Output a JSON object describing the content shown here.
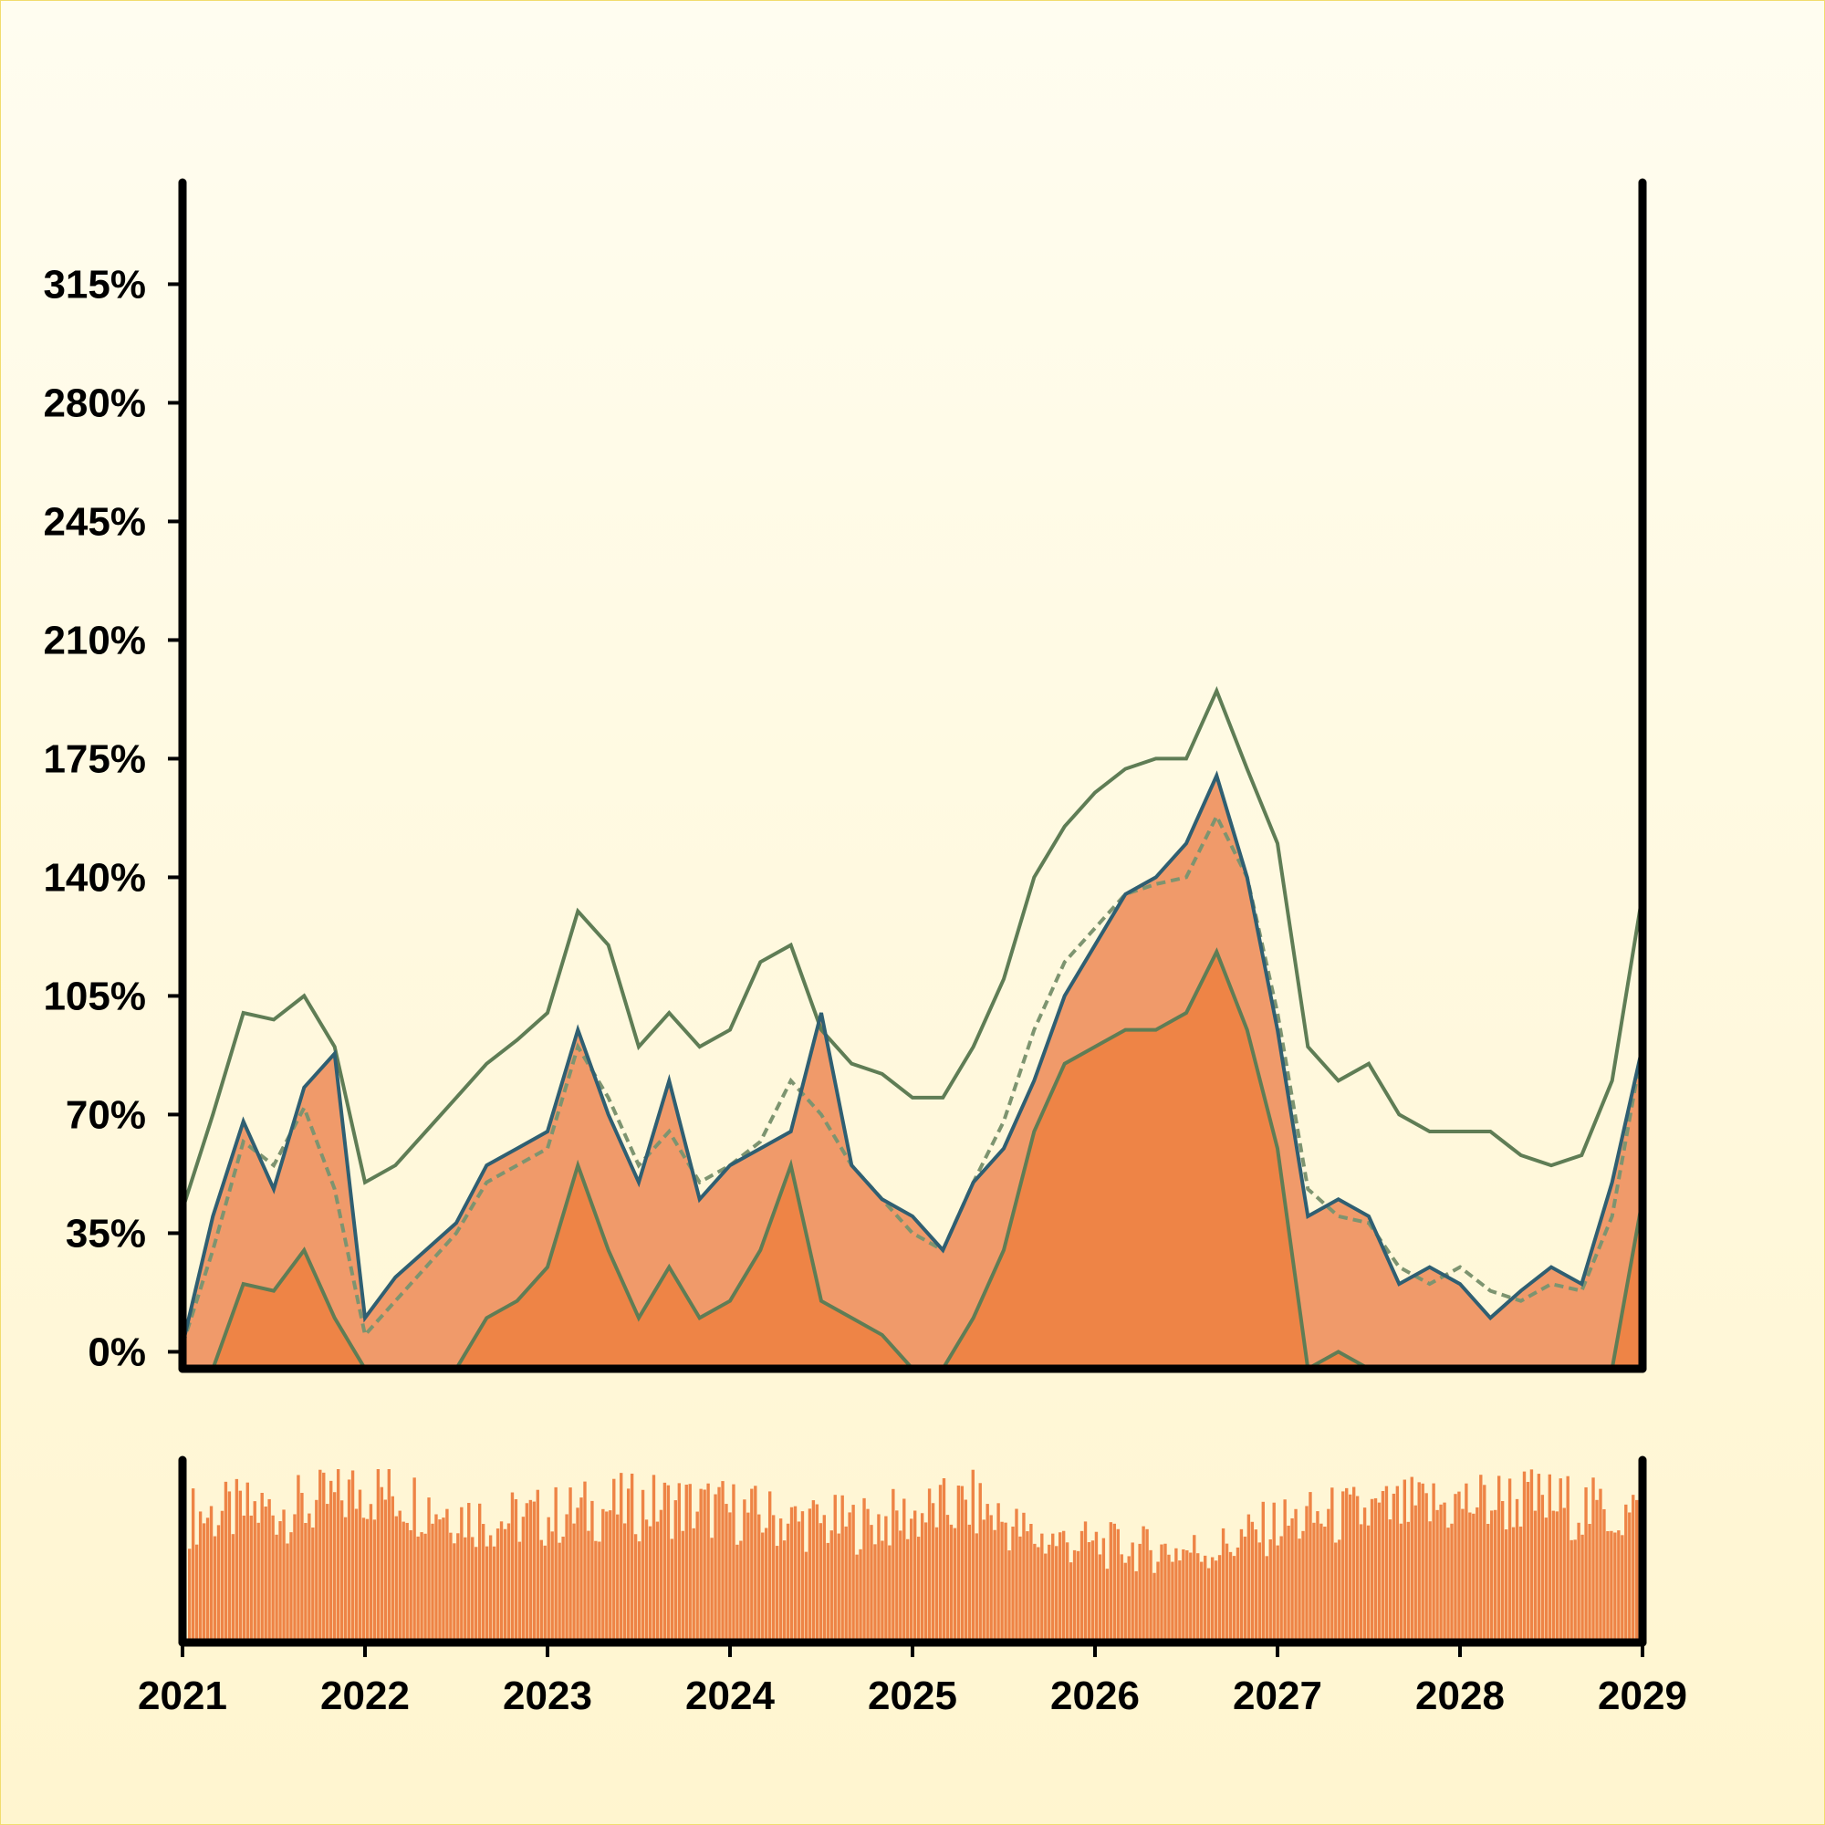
{
  "chart_data": [
    {
      "type": "line",
      "title": "",
      "xlabel": "",
      "ylabel": "",
      "ylim": [
        -5,
        345
      ],
      "xlim": [
        "2021-01-01",
        "2029-01-01"
      ],
      "y_ticks": [
        "0%",
        "35%",
        "70%",
        "105%",
        "140%",
        "175%",
        "210%",
        "245%",
        "280%",
        "315%"
      ],
      "y_tick_values": [
        0,
        35,
        70,
        105,
        140,
        175,
        210,
        245,
        280,
        315
      ],
      "grid": false,
      "legend": "none",
      "colors": {
        "price": "#2f5f72",
        "band": "#5f7d55",
        "mid": "#7d9470",
        "fill_light": "#f09a6a",
        "fill_dark": "#ee8446",
        "axis": "#000000"
      },
      "x_dates": [
        "2021-01",
        "2021-03",
        "2021-05",
        "2021-07",
        "2021-09",
        "2021-11",
        "2022-01",
        "2022-03",
        "2022-05",
        "2022-07",
        "2022-09",
        "2022-11",
        "2023-01",
        "2023-03",
        "2023-05",
        "2023-07",
        "2023-09",
        "2023-11",
        "2024-01",
        "2024-03",
        "2024-05",
        "2024-07",
        "2024-09",
        "2024-11",
        "2025-01",
        "2025-03",
        "2025-05",
        "2025-07",
        "2025-09",
        "2025-11",
        "2026-01",
        "2026-03",
        "2026-05",
        "2026-07",
        "2026-09",
        "2026-11",
        "2027-01",
        "2027-03",
        "2027-05",
        "2027-07",
        "2027-09",
        "2027-11",
        "2028-01",
        "2028-03",
        "2028-05",
        "2028-07",
        "2028-09",
        "2028-11",
        "2029-01"
      ],
      "series": [
        {
          "role": "price",
          "values": [
            2,
            40,
            68,
            48,
            78,
            88,
            10,
            22,
            30,
            38,
            55,
            60,
            65,
            95,
            70,
            50,
            80,
            45,
            55,
            60,
            65,
            100,
            55,
            45,
            40,
            30,
            50,
            60,
            80,
            105,
            120,
            135,
            140,
            150,
            170,
            140,
            95,
            40,
            45,
            40,
            20,
            25,
            20,
            10,
            18,
            25,
            20,
            50,
            90
          ]
        },
        {
          "role": "upper_band",
          "values": [
            42,
            70,
            100,
            98,
            105,
            90,
            50,
            55,
            65,
            75,
            85,
            92,
            100,
            130,
            120,
            90,
            100,
            90,
            95,
            115,
            120,
            95,
            85,
            82,
            75,
            75,
            90,
            110,
            140,
            155,
            165,
            172,
            175,
            175,
            195,
            172,
            150,
            90,
            80,
            85,
            70,
            65,
            65,
            65,
            58,
            55,
            58,
            80,
            135
          ]
        },
        {
          "role": "middle_band",
          "values": [
            2,
            30,
            62,
            55,
            72,
            48,
            5,
            15,
            25,
            35,
            50,
            55,
            60,
            90,
            75,
            55,
            65,
            50,
            55,
            62,
            80,
            70,
            55,
            45,
            35,
            30,
            50,
            68,
            95,
            115,
            125,
            135,
            138,
            140,
            158,
            140,
            100,
            48,
            40,
            38,
            25,
            20,
            25,
            18,
            15,
            20,
            18,
            40,
            90
          ]
        },
        {
          "role": "lower_band",
          "values": [
            -40,
            -10,
            20,
            18,
            30,
            10,
            -40,
            -25,
            -15,
            -10,
            10,
            15,
            25,
            55,
            30,
            10,
            25,
            10,
            15,
            30,
            55,
            15,
            10,
            5,
            -10,
            -15,
            10,
            30,
            65,
            85,
            90,
            95,
            95,
            100,
            118,
            95,
            60,
            -5,
            0,
            -5,
            -20,
            -30,
            -20,
            -25,
            -30,
            -20,
            -25,
            -10,
            45
          ]
        }
      ]
    },
    {
      "type": "bar",
      "title": "",
      "xlabel": "",
      "ylabel": "",
      "x_ticks": [
        "2021",
        "2022",
        "2023",
        "2024",
        "2025",
        "2026",
        "2027",
        "2028",
        "2029"
      ],
      "period_dates": [
        "2021-01",
        "2021-05",
        "2021-09",
        "2022-01",
        "2022-05",
        "2022-09",
        "2023-01",
        "2023-05",
        "2023-09",
        "2024-01",
        "2024-05",
        "2024-09",
        "2025-01",
        "2025-05",
        "2025-09",
        "2026-01",
        "2026-05",
        "2026-09",
        "2027-01",
        "2027-05",
        "2027-09",
        "2028-01",
        "2028-05",
        "2028-09",
        "2029-01"
      ],
      "period_values": [
        75,
        78,
        80,
        92,
        82,
        72,
        75,
        80,
        82,
        78,
        72,
        70,
        75,
        82,
        62,
        58,
        55,
        55,
        70,
        75,
        78,
        82,
        85,
        80,
        75
      ],
      "ylim": [
        0,
        100
      ],
      "color": "#ee8446"
    }
  ]
}
